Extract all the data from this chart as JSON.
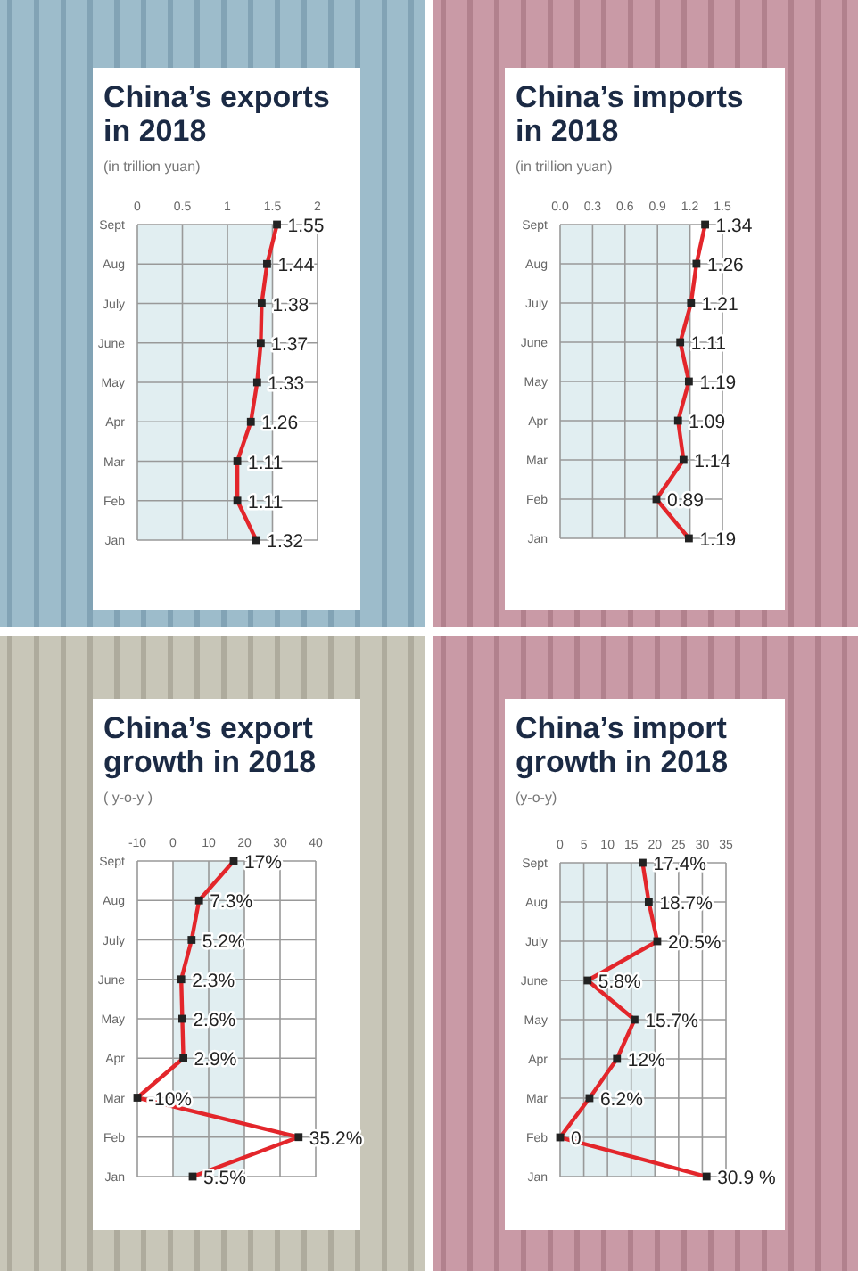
{
  "chart_data": [
    {
      "type": "line",
      "orientation": "horizontal",
      "title": "China’s exports in 2018",
      "subtitle": "(in trillion yuan)",
      "categories": [
        "Sept",
        "Aug",
        "July",
        "June",
        "May",
        "Apr",
        "Mar",
        "Feb",
        "Jan"
      ],
      "series": [
        {
          "color": "#e3262b",
          "values": [
            1.55,
            1.44,
            1.38,
            1.37,
            1.33,
            1.26,
            1.11,
            1.11,
            1.32
          ],
          "value_labels": [
            "1.55",
            "1.44",
            "1.38",
            "1.37",
            "1.33",
            "1.26",
            "1.11",
            "1.11",
            "1.32"
          ]
        }
      ],
      "xlim": [
        0,
        2
      ],
      "xticks": [
        0,
        0.5,
        1,
        1.5,
        2
      ],
      "grid": true,
      "marker": "square",
      "bands": [
        {
          "axis": "x",
          "from": 0,
          "to": 1.5,
          "color": "#e1eef1"
        }
      ]
    },
    {
      "type": "line",
      "orientation": "horizontal",
      "title": "China’s imports in 2018",
      "subtitle": "(in trillion yuan)",
      "categories": [
        "Sept",
        "Aug",
        "July",
        "June",
        "May",
        "Apr",
        "Mar",
        "Feb",
        "Jan"
      ],
      "series": [
        {
          "color": "#e3262b",
          "values": [
            1.34,
            1.26,
            1.21,
            1.11,
            1.19,
            1.09,
            1.14,
            0.89,
            1.19
          ],
          "value_labels": [
            "1.34",
            "1.26",
            "1.21",
            "1.11",
            "1.19",
            "1.09",
            "1.14",
            "0.89",
            "1.19"
          ]
        }
      ],
      "xlim": [
        0,
        1.5
      ],
      "xticks": [
        {
          "value": 0,
          "label": "0.0"
        },
        0.3,
        0.6,
        0.9,
        1.2,
        1.5
      ],
      "grid": true,
      "marker": "square",
      "bands": [
        {
          "axis": "x",
          "from": 0,
          "to": 1.2,
          "color": "#e1eef1"
        }
      ]
    },
    {
      "type": "line",
      "orientation": "horizontal",
      "title": "China’s export growth in 2018",
      "subtitle": "( y-o-y )",
      "categories": [
        "Sept",
        "Aug",
        "July",
        "June",
        "May",
        "Apr",
        "Mar",
        "Feb",
        "Jan"
      ],
      "series": [
        {
          "color": "#e3262b",
          "values": [
            17,
            7.3,
            5.2,
            2.3,
            2.6,
            2.9,
            -10,
            35.2,
            5.5
          ],
          "value_labels": [
            "17%",
            "7.3%",
            "5.2%",
            "2.3%",
            "2.6%",
            "2.9%",
            "-10%",
            "35.2%",
            "5.5%"
          ]
        }
      ],
      "xlim": [
        -10,
        40
      ],
      "xticks": [
        -10,
        0,
        10,
        20,
        30,
        40
      ],
      "grid": true,
      "marker": "square",
      "bands": [
        {
          "axis": "x",
          "from": 0,
          "to": 20,
          "color": "#e1eef1"
        }
      ]
    },
    {
      "type": "line",
      "orientation": "horizontal",
      "title": "China’s import growth in 2018",
      "subtitle": "(y-o-y)",
      "categories": [
        "Sept",
        "Aug",
        "July",
        "June",
        "May",
        "Apr",
        "Mar",
        "Feb",
        "Jan"
      ],
      "series": [
        {
          "color": "#e3262b",
          "values": [
            17.4,
            18.7,
            20.5,
            5.8,
            15.7,
            12,
            6.2,
            0,
            30.9
          ],
          "value_labels": [
            "17.4%",
            "18.7%",
            "20.5%",
            "5.8%",
            "15.7%",
            "12%",
            "6.2%",
            "0",
            "30.9 %"
          ]
        }
      ],
      "xlim": [
        0,
        35
      ],
      "xticks": [
        0,
        5,
        10,
        15,
        20,
        25,
        30,
        35
      ],
      "grid": true,
      "marker": "square",
      "bands": [
        {
          "axis": "x",
          "from": 0,
          "to": 20,
          "color": "#e1eef1"
        }
      ]
    }
  ]
}
